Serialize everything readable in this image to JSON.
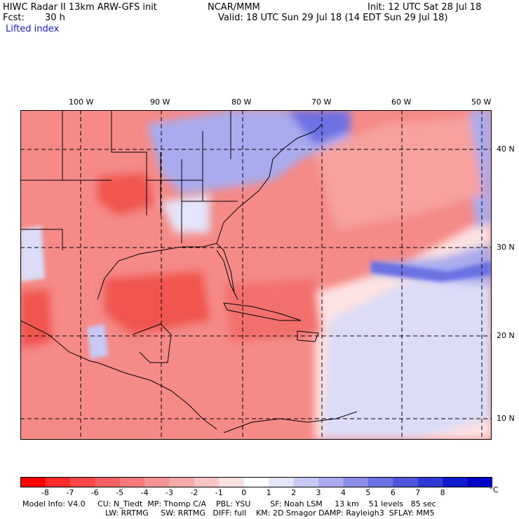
{
  "header": {
    "title_left": "HIWC Radar II 13km ARW-GFS init",
    "title_center": "NCAR/MMM",
    "init": "Init: 12 UTC Sat 28 Jul 18",
    "fcst_label": "Fcst:",
    "fcst_value": "30 h",
    "valid": "Valid: 18 UTC Sun 29 Jul 18 (14 EDT Sun 29 Jul 18)",
    "field": "Lifted index"
  },
  "map": {
    "lon_labels": [
      "100 W",
      "90 W",
      "80 W",
      "70 W",
      "60 W",
      "50 W"
    ],
    "lat_labels": [
      "40 N",
      "30 N",
      "20 N",
      "10 N"
    ],
    "colors": {
      "strong_red": "#f0544f",
      "red": "#f58a87",
      "light_red": "#f9b5b2",
      "pale": "#fbe3e2",
      "light_blue": "#c9caf2",
      "blue": "#8d90ea",
      "deep_blue": "#3a40e0"
    }
  },
  "colorbar": {
    "labels": [
      "-8",
      "-7",
      "-6",
      "-5",
      "-4",
      "-3",
      "-2",
      "-1",
      "0",
      "1",
      "2",
      "3",
      "4",
      "5",
      "6",
      "7",
      "8"
    ],
    "unit": "°C",
    "colors": [
      "#ff0000",
      "#ff2a2a",
      "#ff4747",
      "#f96060",
      "#f57979",
      "#f29292",
      "#f5aaaa",
      "#f8c4c4",
      "#fbe0e0",
      "#ffffff",
      "#e4e4fa",
      "#c8c9f4",
      "#a9abee",
      "#8a8ee8",
      "#6c71e3",
      "#4e55dc",
      "#3038d6",
      "#121ad0",
      "#0000c8"
    ]
  },
  "footer": {
    "line1": "Model Info: V4.0     CU: N_Tiedt  MP: Thomp C/A    PBL: YSU        SF: Noah LSM     13 km    51 levels   85 sec",
    "line2": "LW: RRTMG     SW: RRTMG   DIFF: full    KM: 2D Smagor DAMP: Rayleigh3  SFLAY: MM5"
  }
}
